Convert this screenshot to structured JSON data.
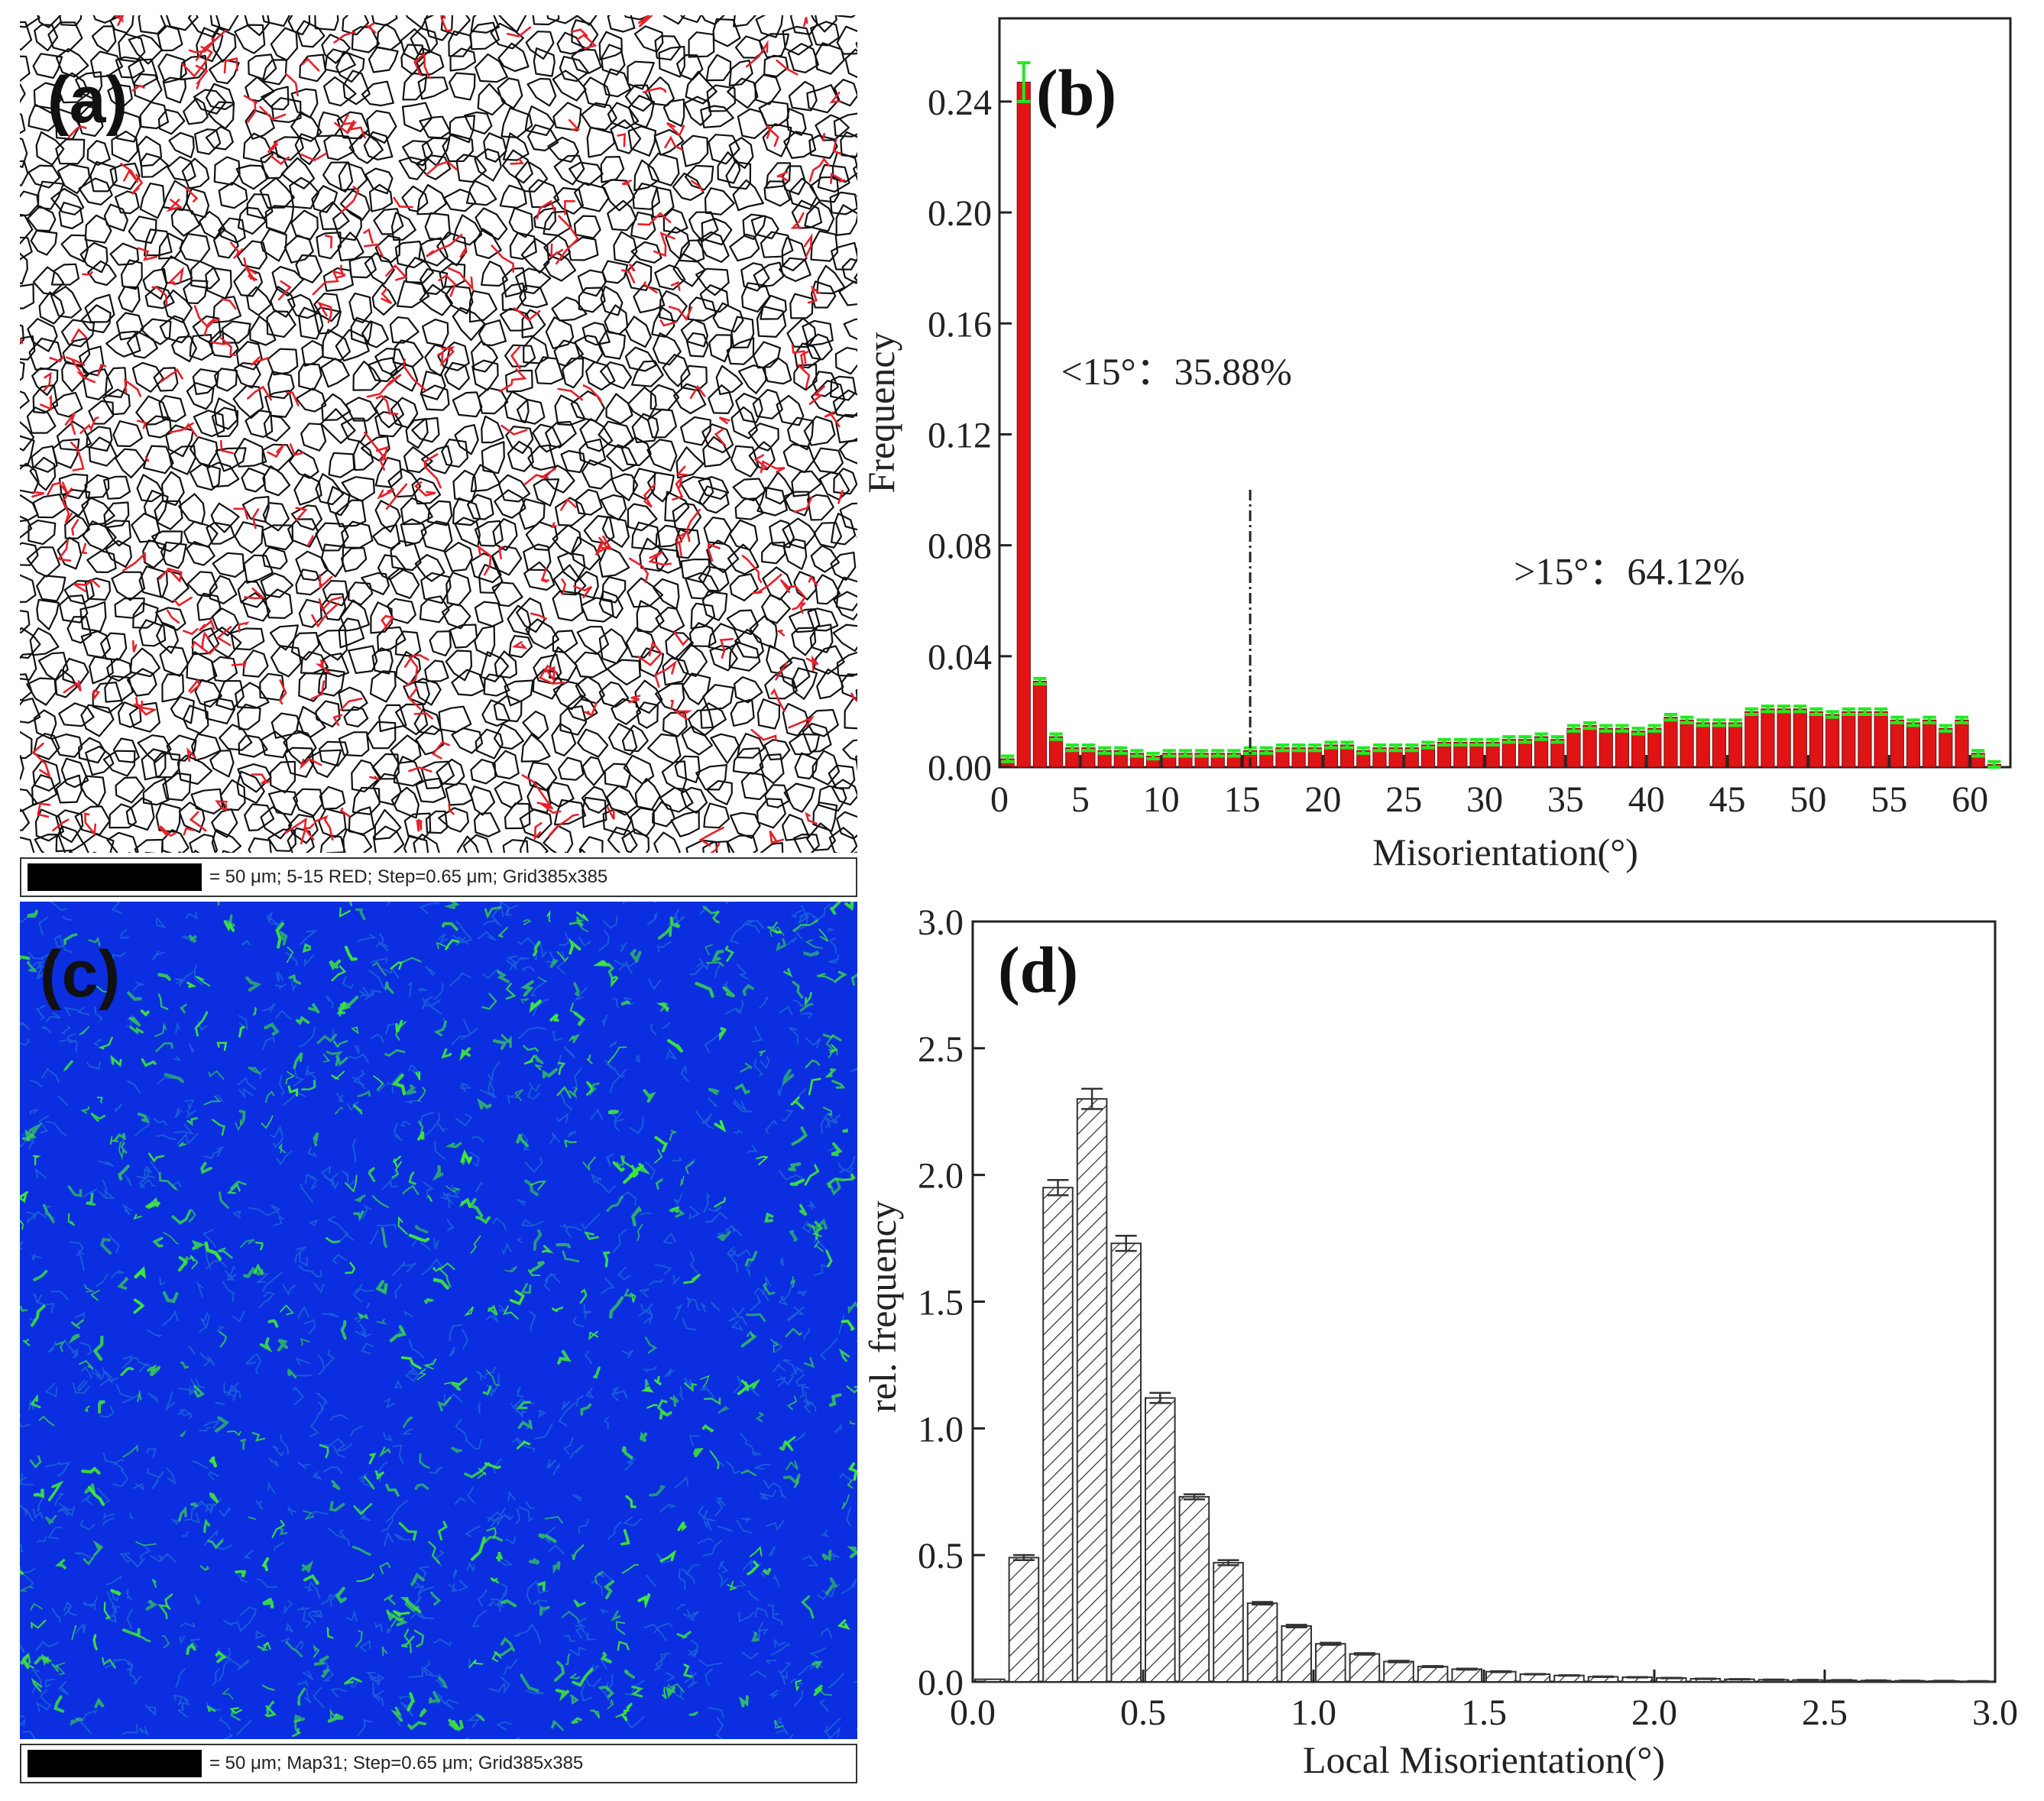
{
  "panels": {
    "a": {
      "label": "(a)",
      "legend": "= 50 μm; 5-15 RED; Step=0.65 μm; Grid385x385",
      "colors": {
        "boundary": "#111111",
        "low_angle": "#e8202a",
        "background": "#ffffff"
      }
    },
    "c": {
      "label": "(c)",
      "legend": "= 50 μm; Map31; Step=0.65 μm; Grid385x385",
      "colors": {
        "base": "#0a2ee0",
        "mid": "#1f6ad8",
        "high": "#3ee83a"
      }
    }
  },
  "chart_data": [
    {
      "panel_label": "(b)",
      "type": "bar",
      "xlabel": "Misorientation(°)",
      "ylabel": "Frequency",
      "xlim": [
        0,
        62.5
      ],
      "ylim": [
        0,
        0.27
      ],
      "xticks": [
        "0",
        "5",
        "10",
        "15",
        "20",
        "25",
        "30",
        "35",
        "40",
        "45",
        "50",
        "55",
        "60"
      ],
      "yticks": [
        "0.00",
        "0.04",
        "0.08",
        "0.12",
        "0.16",
        "0.20",
        "0.24"
      ],
      "bar_color": "#e01414",
      "error_color": "#22e822",
      "bin_width": 1,
      "x": [
        0.5,
        1.5,
        2.5,
        3.5,
        4.5,
        5.5,
        6.5,
        7.5,
        8.5,
        9.5,
        10.5,
        11.5,
        12.5,
        13.5,
        14.5,
        15.5,
        16.5,
        17.5,
        18.5,
        19.5,
        20.5,
        21.5,
        22.5,
        23.5,
        24.5,
        25.5,
        26.5,
        27.5,
        28.5,
        29.5,
        30.5,
        31.5,
        32.5,
        33.5,
        34.5,
        35.5,
        36.5,
        37.5,
        38.5,
        39.5,
        40.5,
        41.5,
        42.5,
        43.5,
        44.5,
        45.5,
        46.5,
        47.5,
        48.5,
        49.5,
        50.5,
        51.5,
        52.5,
        53.5,
        54.5,
        55.5,
        56.5,
        57.5,
        58.5,
        59.5,
        60.5,
        61.5
      ],
      "values": [
        0.003,
        0.247,
        0.031,
        0.011,
        0.007,
        0.007,
        0.006,
        0.006,
        0.005,
        0.004,
        0.005,
        0.005,
        0.005,
        0.005,
        0.005,
        0.006,
        0.006,
        0.007,
        0.007,
        0.007,
        0.008,
        0.008,
        0.006,
        0.007,
        0.007,
        0.007,
        0.008,
        0.009,
        0.009,
        0.009,
        0.009,
        0.01,
        0.01,
        0.011,
        0.01,
        0.014,
        0.015,
        0.014,
        0.014,
        0.013,
        0.014,
        0.018,
        0.017,
        0.016,
        0.016,
        0.016,
        0.02,
        0.021,
        0.021,
        0.021,
        0.02,
        0.019,
        0.02,
        0.02,
        0.02,
        0.017,
        0.016,
        0.017,
        0.014,
        0.017,
        0.005,
        0.001
      ],
      "errors": [
        0.001,
        0.007,
        0.001,
        0.001,
        0.001,
        0.001,
        0.001,
        0.001,
        0.001,
        0.001,
        0.001,
        0.001,
        0.001,
        0.001,
        0.001,
        0.001,
        0.001,
        0.001,
        0.001,
        0.001,
        0.001,
        0.001,
        0.001,
        0.001,
        0.001,
        0.001,
        0.001,
        0.001,
        0.001,
        0.001,
        0.001,
        0.001,
        0.001,
        0.001,
        0.001,
        0.001,
        0.001,
        0.001,
        0.001,
        0.001,
        0.001,
        0.001,
        0.001,
        0.001,
        0.001,
        0.001,
        0.001,
        0.001,
        0.001,
        0.001,
        0.001,
        0.001,
        0.001,
        0.001,
        0.001,
        0.001,
        0.001,
        0.001,
        0.001,
        0.001,
        0.001,
        0.001
      ],
      "threshold_line": {
        "x": 15.5,
        "y_top": 0.1
      },
      "annotations": [
        {
          "text": "<15°：35.88%",
          "x": 3.8,
          "y": 0.138
        },
        {
          "text": ">15°：64.12%",
          "x": 31.8,
          "y": 0.066
        }
      ]
    },
    {
      "panel_label": "(d)",
      "type": "bar",
      "xlabel": "Local Misorientation(°)",
      "ylabel": "rel. frequency",
      "xlim": [
        0.0,
        3.0
      ],
      "ylim": [
        0.0,
        3.0
      ],
      "xticks": [
        "0.0",
        "0.5",
        "1.0",
        "1.5",
        "2.0",
        "2.5",
        "3.0"
      ],
      "yticks": [
        "0.0",
        "0.5",
        "1.0",
        "1.5",
        "2.0",
        "2.5",
        "3.0"
      ],
      "bar_fill": "hatched",
      "bin_width": 0.1,
      "x": [
        0.05,
        0.15,
        0.25,
        0.35,
        0.45,
        0.55,
        0.65,
        0.75,
        0.85,
        0.95,
        1.05,
        1.15,
        1.25,
        1.35,
        1.45,
        1.55,
        1.65,
        1.75,
        1.85,
        1.95,
        2.05,
        2.15,
        2.25,
        2.35,
        2.45,
        2.55,
        2.65,
        2.75,
        2.85,
        2.95
      ],
      "values": [
        0.01,
        0.49,
        1.95,
        2.3,
        1.73,
        1.12,
        0.73,
        0.47,
        0.31,
        0.22,
        0.15,
        0.11,
        0.08,
        0.06,
        0.05,
        0.04,
        0.03,
        0.025,
        0.02,
        0.018,
        0.015,
        0.012,
        0.01,
        0.008,
        0.007,
        0.006,
        0.005,
        0.004,
        0.003,
        0.002
      ],
      "errors": [
        0.0,
        0.01,
        0.03,
        0.04,
        0.03,
        0.02,
        0.01,
        0.01,
        0.005,
        0.005,
        0.004,
        0.003,
        0.003,
        0.002,
        0.002,
        0.002,
        0.001,
        0.001,
        0.001,
        0.001,
        0.001,
        0.001,
        0.001,
        0.001,
        0.001,
        0.001,
        0.001,
        0.001,
        0.001,
        0.001
      ]
    }
  ]
}
